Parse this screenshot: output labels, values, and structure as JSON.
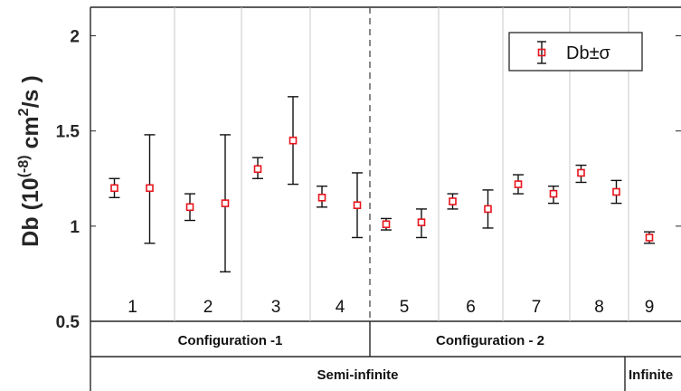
{
  "chart_data": {
    "type": "scatter",
    "ylabel": "Db (10(-8) cm2/s )",
    "ylabel_parts": {
      "main": "Db (10",
      "exp": "(-8)",
      "unit": " cm",
      "unit_exp": "2",
      "tail": "/s )"
    },
    "ylim": [
      0.5,
      2.15
    ],
    "yticks": [
      0.5,
      1,
      1.5,
      2
    ],
    "ytick_labels": [
      "0.5",
      "1",
      "1.5",
      "2"
    ],
    "grid": false,
    "legend_position": "top-right",
    "marker_color": "#e8141c",
    "series": [
      {
        "name": "Db±σ",
        "points": [
          {
            "group": 1,
            "y": 1.2,
            "lo": 1.15,
            "hi": 1.25
          },
          {
            "group": 1,
            "y": 1.2,
            "lo": 0.91,
            "hi": 1.48
          },
          {
            "group": 2,
            "y": 1.1,
            "lo": 1.03,
            "hi": 1.17
          },
          {
            "group": 2,
            "y": 1.12,
            "lo": 0.76,
            "hi": 1.48
          },
          {
            "group": 3,
            "y": 1.3,
            "lo": 1.25,
            "hi": 1.36
          },
          {
            "group": 3,
            "y": 1.45,
            "lo": 1.22,
            "hi": 1.68
          },
          {
            "group": 4,
            "y": 1.15,
            "lo": 1.1,
            "hi": 1.21
          },
          {
            "group": 4,
            "y": 1.11,
            "lo": 0.94,
            "hi": 1.28
          },
          {
            "group": 5,
            "y": 1.01,
            "lo": 0.98,
            "hi": 1.04
          },
          {
            "group": 5,
            "y": 1.02,
            "lo": 0.94,
            "hi": 1.09
          },
          {
            "group": 6,
            "y": 1.13,
            "lo": 1.09,
            "hi": 1.17
          },
          {
            "group": 6,
            "y": 1.09,
            "lo": 0.99,
            "hi": 1.19
          },
          {
            "group": 7,
            "y": 1.22,
            "lo": 1.17,
            "hi": 1.27
          },
          {
            "group": 7,
            "y": 1.17,
            "lo": 1.12,
            "hi": 1.21
          },
          {
            "group": 8,
            "y": 1.28,
            "lo": 1.23,
            "hi": 1.32
          },
          {
            "group": 8,
            "y": 1.18,
            "lo": 1.12,
            "hi": 1.24
          },
          {
            "group": 9,
            "y": 0.94,
            "lo": 0.91,
            "hi": 0.97
          }
        ]
      }
    ],
    "groups": [
      "1",
      "2",
      "3",
      "4",
      "5",
      "6",
      "7",
      "8",
      "9"
    ],
    "configurations": [
      {
        "label": "Configuration -1",
        "groups": [
          1,
          4
        ]
      },
      {
        "label": "Configuration - 2",
        "groups": [
          5,
          9
        ]
      }
    ],
    "domains": [
      {
        "label": "Semi-infinite",
        "groups": [
          1,
          8
        ]
      },
      {
        "label": "Infinite",
        "groups": [
          9,
          9
        ]
      }
    ]
  }
}
